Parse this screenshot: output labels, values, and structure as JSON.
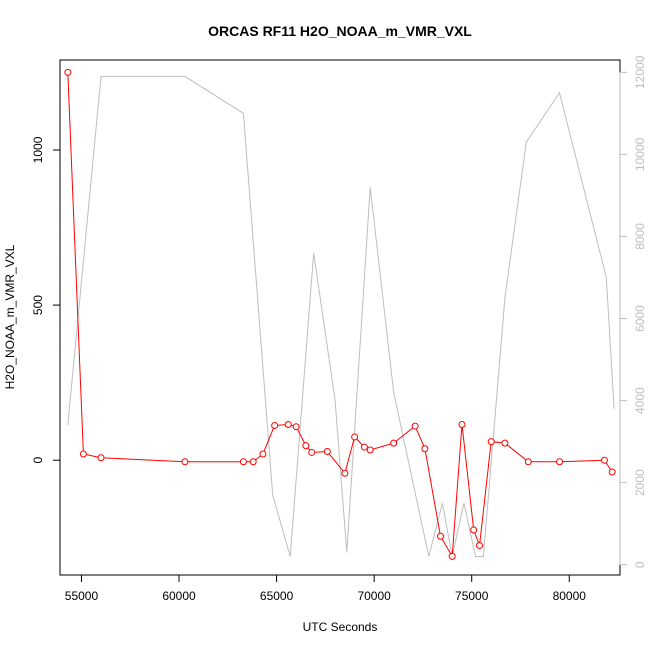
{
  "chart_data": {
    "type": "line",
    "title": "ORCAS RF11 H2O_NOAA_m_VMR_VXL",
    "xlabel": "UTC Seconds",
    "ylabel": "H2O_NOAA_m_VMR_VXL",
    "xlim": [
      53900,
      82600
    ],
    "ylim": [
      -370,
      1290
    ],
    "y2lim": [
      -250,
      12300
    ],
    "xticks": [
      55000,
      60000,
      65000,
      70000,
      75000,
      80000
    ],
    "yticks": [
      0,
      500,
      1000
    ],
    "y2ticks": [
      0,
      2000,
      4000,
      6000,
      8000,
      10000,
      12000
    ],
    "series": [
      {
        "axis": "left",
        "color": "#ff0000",
        "marker": "circle",
        "x": [
          54300,
          55100,
          56000,
          60300,
          63300,
          63800,
          64300,
          64900,
          65600,
          66000,
          66500,
          66800,
          67600,
          68500,
          69000,
          69500,
          69800,
          71000,
          72100,
          72600,
          73400,
          74000,
          74500,
          75100,
          75400,
          76000,
          76700,
          77900,
          79500,
          81800,
          82200
        ],
        "y": [
          1250,
          20,
          8,
          -5,
          -5,
          -5,
          20,
          112,
          115,
          108,
          47,
          25,
          28,
          -42,
          75,
          42,
          33,
          55,
          110,
          37,
          -245,
          -310,
          115,
          -225,
          -275,
          60,
          55,
          -5,
          -5,
          0,
          -38
        ]
      },
      {
        "axis": "right",
        "color": "#bebebe",
        "marker": "none",
        "x": [
          54300,
          56000,
          60300,
          63300,
          64800,
          65700,
          66900,
          68000,
          68600,
          69800,
          71000,
          72800,
          73500,
          74000,
          74600,
          75200,
          75600,
          76700,
          77800,
          79500,
          81900,
          82300
        ],
        "y": [
          3400,
          11900,
          11900,
          11000,
          1700,
          200,
          7600,
          4000,
          300,
          9200,
          4200,
          200,
          1500,
          200,
          1500,
          200,
          200,
          6500,
          10300,
          11500,
          7000,
          3800
        ]
      }
    ]
  }
}
